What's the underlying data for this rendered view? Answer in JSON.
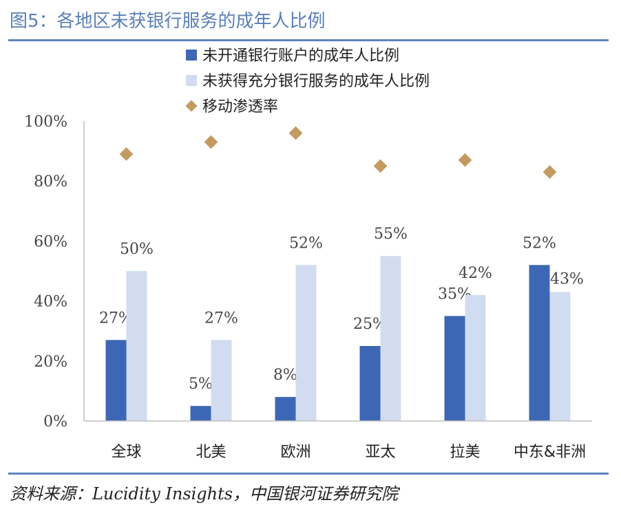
{
  "figure": {
    "title": "图5：各地区未获银行服务的成年人比例",
    "source": "资料来源：Lucidity Insights，中国银河证券研究院"
  },
  "colors": {
    "series1": "#3d67b4",
    "series2": "#d1dcf0",
    "marker": "#c49a63",
    "rule": "#5e82bd",
    "title": "#5a7fb8"
  },
  "chart_data": {
    "type": "bar",
    "categories": [
      "全球",
      "北美",
      "欧洲",
      "亚太",
      "拉美",
      "中东&非洲"
    ],
    "series": [
      {
        "name": "未开通银行账户的成年人比例",
        "type": "bar",
        "values": [
          27,
          5,
          8,
          25,
          35,
          52
        ],
        "labels": [
          "27%",
          "5%",
          "8%",
          "25%",
          "35%",
          "52%"
        ]
      },
      {
        "name": "未获得充分银行服务的成年人比例",
        "type": "bar",
        "values": [
          50,
          27,
          52,
          55,
          42,
          43
        ],
        "labels": [
          "50%",
          "27%",
          "52%",
          "55%",
          "42%",
          "43%"
        ]
      },
      {
        "name": "移动渗透率",
        "type": "scatter",
        "marker": "diamond",
        "values": [
          89,
          93,
          96,
          85,
          87,
          83
        ]
      }
    ],
    "ylim": [
      0,
      100
    ],
    "yticks": [
      "0%",
      "20%",
      "40%",
      "60%",
      "80%",
      "100%"
    ],
    "ytick_values": [
      0,
      20,
      40,
      60,
      80,
      100
    ],
    "legend_position": "top",
    "grid": false
  }
}
